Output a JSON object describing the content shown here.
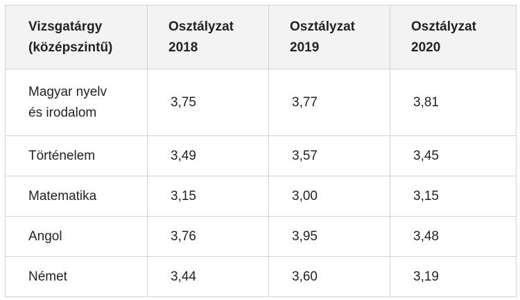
{
  "table": {
    "headers": [
      {
        "line1": "Vizsgatárgy",
        "line2": "(középszintű)"
      },
      {
        "line1": "Osztályzat",
        "line2": "2018"
      },
      {
        "line1": "Osztályzat",
        "line2": "2019"
      },
      {
        "line1": "Osztályzat",
        "line2": "2020"
      }
    ],
    "rows": [
      {
        "subject_line1": "Magyar nyelv",
        "subject_line2": "és irodalom",
        "v2018": "3,75",
        "v2019": "3,77",
        "v2020": "3,81"
      },
      {
        "subject_line1": "Történelem",
        "subject_line2": "",
        "v2018": "3,49",
        "v2019": "3,57",
        "v2020": "3,45"
      },
      {
        "subject_line1": "Matematika",
        "subject_line2": "",
        "v2018": "3,15",
        "v2019": "3,00",
        "v2020": "3,15"
      },
      {
        "subject_line1": "Angol",
        "subject_line2": "",
        "v2018": "3,76",
        "v2019": "3,95",
        "v2020": "3,48"
      },
      {
        "subject_line1": "Német",
        "subject_line2": "",
        "v2018": "3,44",
        "v2019": "3,60",
        "v2020": "3,19"
      }
    ]
  }
}
